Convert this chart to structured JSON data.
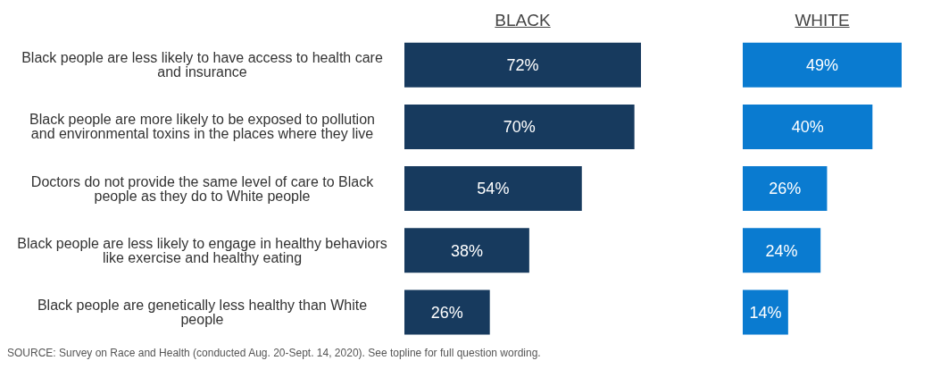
{
  "chart_data": [
    {
      "type": "bar",
      "orientation": "horizontal",
      "title": "BLACK",
      "categories": [
        "Black people are less likely to have access to health care and insurance",
        "Black people are more likely to be exposed to pollution and environmental toxins in the places where they live",
        "Doctors do not provide the same level of care to Black people as they do to White people",
        "Black people are less likely to engage in healthy behaviors like exercise and healthy eating",
        "Black people are genetically less healthy than White people"
      ],
      "series": [
        {
          "color": "#173a5e",
          "values": [
            72,
            70,
            54,
            38,
            26
          ],
          "value_labels": [
            "72%",
            "70%",
            "54%",
            "38%",
            "26%"
          ]
        }
      ],
      "tick_labels": "y",
      "grid": false,
      "legend": false,
      "annotations": [
        "SOURCE: Survey on Race and Health (conducted Aug. 20-Sept. 14, 2020). See topline for full question wording."
      ]
    },
    {
      "type": "bar",
      "orientation": "horizontal",
      "title": "WHITE",
      "categories": [
        null,
        null,
        null,
        null,
        null
      ],
      "series": [
        {
          "color": "#0a7bd0",
          "values": [
            49,
            40,
            26,
            24,
            14
          ],
          "value_labels": [
            "49%",
            "40%",
            "26%",
            "24%",
            "14%"
          ]
        }
      ],
      "tick_labels": false,
      "grid": false,
      "legend": false
    }
  ]
}
